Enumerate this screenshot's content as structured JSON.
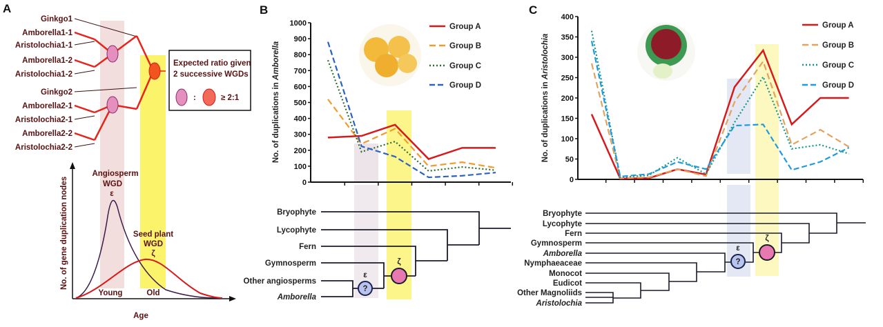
{
  "panels": {
    "a": "A",
    "b": "B",
    "c": "C"
  },
  "panel_a": {
    "tree_labels": [
      "Ginkgo1",
      "Amborella1-1",
      "Aristolochia1-1",
      "Amborella1-2",
      "Aristolochia1-2",
      "Ginkgo2",
      "Amborella2-1",
      "Aristolochia2-1",
      "Amborella2-2",
      "Aristolochia2-2"
    ],
    "legend_box": {
      "line1": "Expected ratio given",
      "line2": "2 successive WGDs",
      "colon": ":",
      "ratio": "≥ 2:1"
    },
    "curve_chart": {
      "ylabel": "No. of gene duplication nodes",
      "xlabel": "Age",
      "peak1": [
        "Angiosperm",
        "WGD",
        "ε"
      ],
      "peak2": [
        "Seed plant",
        "WGD",
        "ζ"
      ],
      "young": "Young",
      "old": "Old"
    }
  },
  "colors": {
    "group_a": "#d7191c",
    "group_b_b": "#f39a2e",
    "group_c_b": "#2e6b2e",
    "group_d_b": "#2a62c4",
    "group_b_c": "#e3a25e",
    "group_c_c": "#10968a",
    "group_d_c": "#1e9be0",
    "young_band": "#f3dede",
    "old_band": "#fbf36a"
  },
  "chart_data": [
    {
      "type": "line",
      "ylabel_prefix": "No. of duplications in ",
      "ylabel_italic": "Amborella",
      "ylim": [
        0,
        1000
      ],
      "yticks": [
        0,
        100,
        200,
        300,
        400,
        500,
        600,
        700,
        800,
        900,
        1000
      ],
      "legend_placement": "top-right",
      "series": [
        {
          "name": "Group A",
          "values": [
            280,
            290,
            360,
            145,
            215,
            215
          ]
        },
        {
          "name": "Group B",
          "values": [
            520,
            240,
            335,
            100,
            125,
            90
          ]
        },
        {
          "name": "Group C",
          "values": [
            765,
            190,
            255,
            70,
            95,
            75
          ]
        },
        {
          "name": "Group D",
          "values": [
            880,
            225,
            160,
            30,
            40,
            60
          ]
        }
      ]
    },
    {
      "type": "line",
      "ylabel_prefix": "No. of duplications in ",
      "ylabel_italic": "Aristolochia",
      "ylim": [
        0,
        400
      ],
      "yticks": [
        0,
        50,
        100,
        150,
        200,
        250,
        300,
        350,
        400
      ],
      "legend_placement": "top-right",
      "series": [
        {
          "name": "Group A",
          "values": [
            160,
            2,
            3,
            25,
            12,
            227,
            317,
            135,
            200,
            200
          ]
        },
        {
          "name": "Group B",
          "values": [
            285,
            3,
            5,
            25,
            8,
            190,
            290,
            85,
            122,
            80
          ]
        },
        {
          "name": "Group C",
          "values": [
            365,
            5,
            10,
            53,
            13,
            140,
            252,
            75,
            85,
            63
          ]
        },
        {
          "name": "Group D",
          "values": [
            340,
            7,
            13,
            43,
            25,
            132,
            135,
            23,
            43,
            78
          ]
        }
      ]
    }
  ],
  "tree_b": {
    "labels": [
      "Bryophyte",
      "Lycophyte",
      "Fern",
      "Gymnosperm",
      "Other angiosperms",
      "Amborella"
    ],
    "italic": [
      false,
      false,
      false,
      false,
      false,
      true
    ],
    "epsilon": "ε",
    "zeta": "ζ",
    "question": "?"
  },
  "tree_c": {
    "labels": [
      "Bryophyte",
      "Lycophyte",
      "Fern",
      "Gymnosperm",
      "Amborella",
      "Nymphaeaceae",
      "Monocot",
      "Eudicot",
      "Other Magnoliids",
      "Aristolochia"
    ],
    "italic": [
      false,
      false,
      false,
      false,
      true,
      false,
      false,
      false,
      false,
      true
    ],
    "epsilon": "ε",
    "zeta": "ζ",
    "question": "?"
  }
}
